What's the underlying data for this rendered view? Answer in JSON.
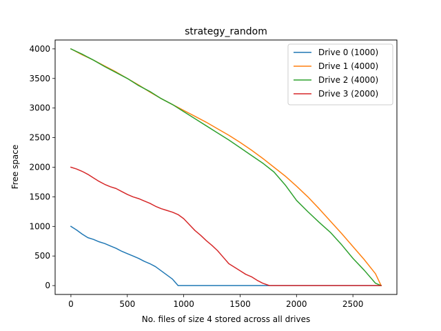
{
  "chart_data": {
    "type": "line",
    "title": "strategy_random",
    "xlabel": "No. files of size 4 stored across all drives",
    "ylabel": "Free space",
    "xlim": [
      -140,
      2890
    ],
    "ylim": [
      -150,
      4150
    ],
    "xticks": [
      0,
      500,
      1000,
      1500,
      2000,
      2500
    ],
    "yticks": [
      0,
      500,
      1000,
      1500,
      2000,
      2500,
      3000,
      3500,
      4000
    ],
    "grid": false,
    "legend_position": "top-right",
    "series": [
      {
        "name": "Drive 0 (1000)",
        "color": "#1f77b4",
        "x": [
          0,
          50,
          100,
          150,
          200,
          250,
          300,
          350,
          400,
          450,
          500,
          550,
          600,
          650,
          700,
          750,
          800,
          850,
          900,
          950,
          1000,
          1500,
          1760,
          2000,
          2500,
          2750
        ],
        "y": [
          1000,
          940,
          870,
          810,
          780,
          740,
          710,
          670,
          630,
          580,
          540,
          500,
          460,
          410,
          370,
          320,
          250,
          180,
          110,
          0,
          0,
          0,
          0,
          0,
          0,
          0
        ]
      },
      {
        "name": "Drive 1 (4000)",
        "color": "#ff7f0e",
        "x": [
          0,
          100,
          200,
          300,
          400,
          500,
          600,
          700,
          800,
          900,
          1000,
          1100,
          1200,
          1300,
          1400,
          1500,
          1600,
          1700,
          1800,
          1900,
          2000,
          2100,
          2200,
          2300,
          2400,
          2500,
          2600,
          2700,
          2750
        ],
        "y": [
          4000,
          3900,
          3810,
          3710,
          3610,
          3500,
          3390,
          3270,
          3160,
          3060,
          2960,
          2860,
          2760,
          2650,
          2540,
          2420,
          2290,
          2150,
          2000,
          1850,
          1680,
          1500,
          1300,
          1090,
          880,
          660,
          440,
          200,
          0
        ]
      },
      {
        "name": "Drive 2 (4000)",
        "color": "#2ca02c",
        "x": [
          0,
          100,
          200,
          300,
          400,
          500,
          600,
          700,
          800,
          900,
          1000,
          1100,
          1200,
          1300,
          1400,
          1500,
          1600,
          1700,
          1800,
          1900,
          2000,
          2100,
          2200,
          2300,
          2400,
          2500,
          2600,
          2700,
          2750
        ],
        "y": [
          4000,
          3910,
          3810,
          3700,
          3600,
          3500,
          3380,
          3280,
          3160,
          3060,
          2940,
          2820,
          2700,
          2580,
          2460,
          2330,
          2200,
          2070,
          1920,
          1700,
          1440,
          1250,
          1070,
          900,
          690,
          460,
          260,
          40,
          0
        ]
      },
      {
        "name": "Drive 3 (2000)",
        "color": "#d62728",
        "x": [
          0,
          50,
          100,
          150,
          200,
          250,
          300,
          350,
          400,
          450,
          500,
          550,
          600,
          650,
          700,
          750,
          800,
          850,
          900,
          950,
          1000,
          1050,
          1100,
          1150,
          1200,
          1250,
          1300,
          1350,
          1400,
          1450,
          1500,
          1550,
          1600,
          1650,
          1700,
          1760,
          2000,
          2500,
          2750
        ],
        "y": [
          2000,
          1970,
          1930,
          1880,
          1820,
          1760,
          1710,
          1670,
          1640,
          1590,
          1540,
          1500,
          1470,
          1430,
          1390,
          1340,
          1300,
          1270,
          1240,
          1200,
          1130,
          1030,
          930,
          850,
          760,
          680,
          590,
          480,
          370,
          310,
          250,
          190,
          150,
          90,
          40,
          0,
          0,
          0,
          0
        ]
      }
    ]
  }
}
